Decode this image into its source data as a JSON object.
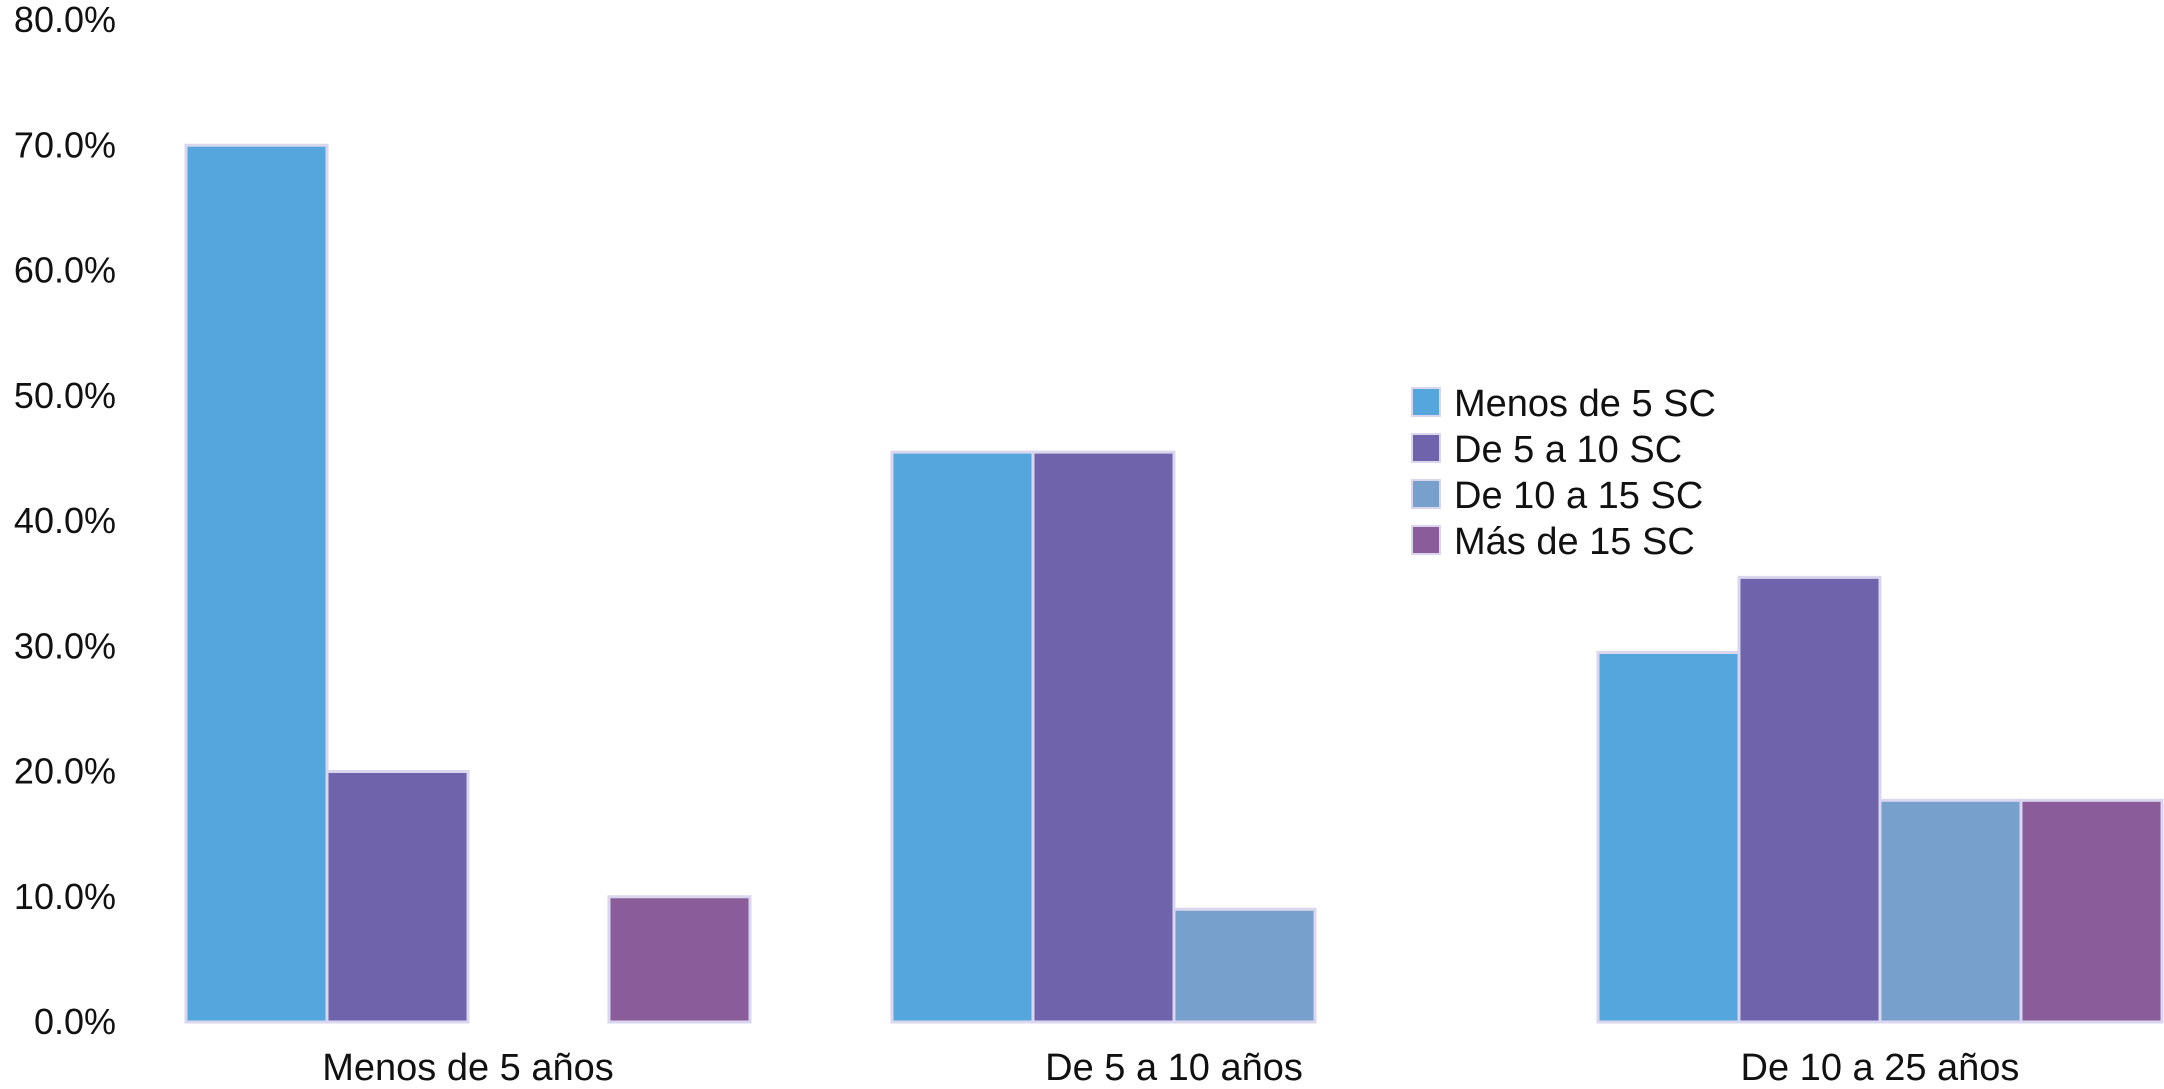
{
  "chart_data": {
    "type": "bar",
    "categories": [
      "Menos de 5 años",
      "De 5 a 10 años",
      "De 10 a 25 años"
    ],
    "series": [
      {
        "name": "Menos de 5 SC",
        "values": [
          70.0,
          45.5,
          29.5
        ],
        "color": "#55a6dd"
      },
      {
        "name": "De 5 a 10 SC",
        "values": [
          20.0,
          45.5,
          35.5
        ],
        "color": "#6f63ab"
      },
      {
        "name": "De 10 a 15 SC",
        "values": [
          0.0,
          9.0,
          17.7
        ],
        "color": "#77a0cc"
      },
      {
        "name": "Más de 15 SC",
        "values": [
          10.0,
          0.0,
          17.7
        ],
        "color": "#8b5c9a"
      }
    ],
    "ylim": [
      0,
      80
    ],
    "y_ticks": [
      "0.0%",
      "10.0%",
      "20.0%",
      "30.0%",
      "40.0%",
      "50.0%",
      "60.0%",
      "70.0%",
      "80.0%"
    ],
    "y_tick_values": [
      0,
      10,
      20,
      30,
      40,
      50,
      60,
      70,
      80
    ],
    "grid": false,
    "legend_position": "center-right",
    "bar_edge_color": "#d9d6ee"
  }
}
